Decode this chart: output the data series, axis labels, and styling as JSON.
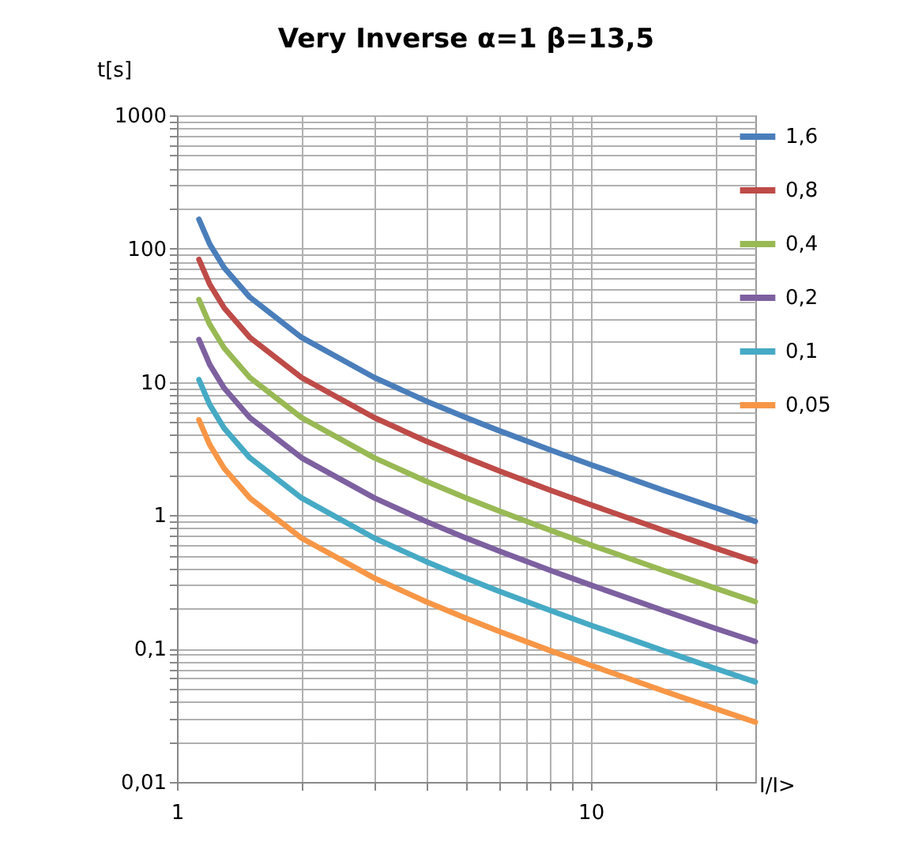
{
  "chart_data": {
    "type": "line",
    "title": "Very Inverse α=1 β=13,5",
    "xlabel": "I/I>",
    "ylabel": "t[s]",
    "x": [
      1.13,
      1.2,
      1.3,
      1.5,
      2,
      3,
      4,
      5,
      6,
      8,
      10,
      15,
      20,
      25
    ],
    "series": [
      {
        "name": "1,6",
        "color": "#4a7ebb",
        "values": [
          166,
          108,
          72,
          43.2,
          21.6,
          10.8,
          7.2,
          5.4,
          4.32,
          3.09,
          2.4,
          1.54,
          1.14,
          0.9
        ]
      },
      {
        "name": "0,8",
        "color": "#be4b48",
        "values": [
          83.1,
          54,
          36,
          21.6,
          10.8,
          5.4,
          3.6,
          2.7,
          2.16,
          1.54,
          1.2,
          0.771,
          0.568,
          0.45
        ]
      },
      {
        "name": "0,4",
        "color": "#98b954",
        "values": [
          41.5,
          27,
          18,
          10.8,
          5.4,
          2.7,
          1.8,
          1.35,
          1.08,
          0.771,
          0.6,
          0.386,
          0.284,
          0.225
        ]
      },
      {
        "name": "0,2",
        "color": "#7d60a0",
        "values": [
          20.8,
          13.5,
          9,
          5.4,
          2.7,
          1.35,
          0.9,
          0.675,
          0.54,
          0.386,
          0.3,
          0.193,
          0.142,
          0.113
        ]
      },
      {
        "name": "0,1",
        "color": "#46aac5",
        "values": [
          10.4,
          6.75,
          4.5,
          2.7,
          1.35,
          0.675,
          0.45,
          0.338,
          0.27,
          0.193,
          0.15,
          0.0964,
          0.0711,
          0.0563
        ]
      },
      {
        "name": "0,05",
        "color": "#f79646",
        "values": [
          5.2,
          3.38,
          2.25,
          1.35,
          0.675,
          0.338,
          0.225,
          0.169,
          0.135,
          0.0964,
          0.075,
          0.0482,
          0.0355,
          0.0281
        ]
      }
    ],
    "log": "xy",
    "xlim": [
      1,
      25
    ],
    "ylim": [
      0.01,
      1000
    ],
    "xticks": [
      1,
      {
        "value": 2,
        "label": null
      },
      {
        "value": 3,
        "label": null
      },
      {
        "value": 4,
        "label": null
      },
      {
        "value": 5,
        "label": null
      },
      {
        "value": 6,
        "label": null
      },
      {
        "value": 7,
        "label": null
      },
      {
        "value": 8,
        "label": null
      },
      {
        "value": 9,
        "label": null
      },
      10,
      {
        "value": 20,
        "label": null
      }
    ],
    "yticks": [
      {
        "value": 0.01,
        "label": "0,01"
      },
      {
        "value": 0.02,
        "label": null
      },
      {
        "value": 0.03,
        "label": null
      },
      {
        "value": 0.04,
        "label": null
      },
      {
        "value": 0.05,
        "label": null
      },
      {
        "value": 0.06,
        "label": null
      },
      {
        "value": 0.07,
        "label": null
      },
      {
        "value": 0.08,
        "label": null
      },
      {
        "value": 0.09,
        "label": null
      },
      {
        "value": 0.1,
        "label": "0,1"
      },
      {
        "value": 0.2,
        "label": null
      },
      {
        "value": 0.3,
        "label": null
      },
      {
        "value": 0.4,
        "label": null
      },
      {
        "value": 0.5,
        "label": null
      },
      {
        "value": 0.6,
        "label": null
      },
      {
        "value": 0.7,
        "label": null
      },
      {
        "value": 0.8,
        "label": null
      },
      {
        "value": 0.9,
        "label": null
      },
      1,
      {
        "value": 2,
        "label": null
      },
      {
        "value": 3,
        "label": null
      },
      {
        "value": 4,
        "label": null
      },
      {
        "value": 5,
        "label": null
      },
      {
        "value": 6,
        "label": null
      },
      {
        "value": 7,
        "label": null
      },
      {
        "value": 8,
        "label": null
      },
      {
        "value": 9,
        "label": null
      },
      10,
      {
        "value": 20,
        "label": null
      },
      {
        "value": 30,
        "label": null
      },
      {
        "value": 40,
        "label": null
      },
      {
        "value": 50,
        "label": null
      },
      {
        "value": 60,
        "label": null
      },
      {
        "value": 70,
        "label": null
      },
      {
        "value": 80,
        "label": null
      },
      {
        "value": 90,
        "label": null
      },
      100,
      {
        "value": 200,
        "label": null
      },
      {
        "value": 300,
        "label": null
      },
      {
        "value": 400,
        "label": null
      },
      {
        "value": 500,
        "label": null
      },
      {
        "value": 600,
        "label": null
      },
      {
        "value": 700,
        "label": null
      },
      {
        "value": 800,
        "label": null
      },
      {
        "value": 900,
        "label": null
      },
      1000
    ],
    "grid": true,
    "legend": "right",
    "marker": "none",
    "line_style": "solid"
  }
}
